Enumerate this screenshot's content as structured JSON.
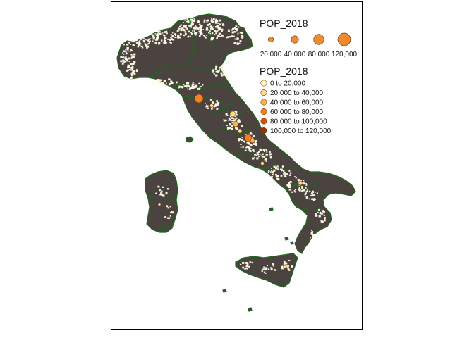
{
  "map": {
    "land_color": "#4a4340",
    "border_color": "#1a6b1a",
    "muni_fill": "#fff5d0",
    "muni_stroke": "#ffffff"
  },
  "legend_size": {
    "title": "POP_2018",
    "entries": [
      {
        "label": "20,000",
        "value": 20000
      },
      {
        "label": "40,000",
        "value": 40000
      },
      {
        "label": "80,000",
        "value": 80000
      },
      {
        "label": "120,000",
        "value": 120000
      }
    ],
    "color": "#f08a2c"
  },
  "legend_color": {
    "title": "POP_2018",
    "entries": [
      {
        "label": "0 to 20,000",
        "color": "#fff7c8"
      },
      {
        "label": "20,000 to 40,000",
        "color": "#fedb8c"
      },
      {
        "label": "40,000 to 60,000",
        "color": "#fdb04e"
      },
      {
        "label": "60,000 to 80,000",
        "color": "#f5801e"
      },
      {
        "label": "80,000 to 100,000",
        "color": "#d4530a"
      },
      {
        "label": "100,000 to 120,000",
        "color": "#9a3403"
      }
    ]
  }
}
